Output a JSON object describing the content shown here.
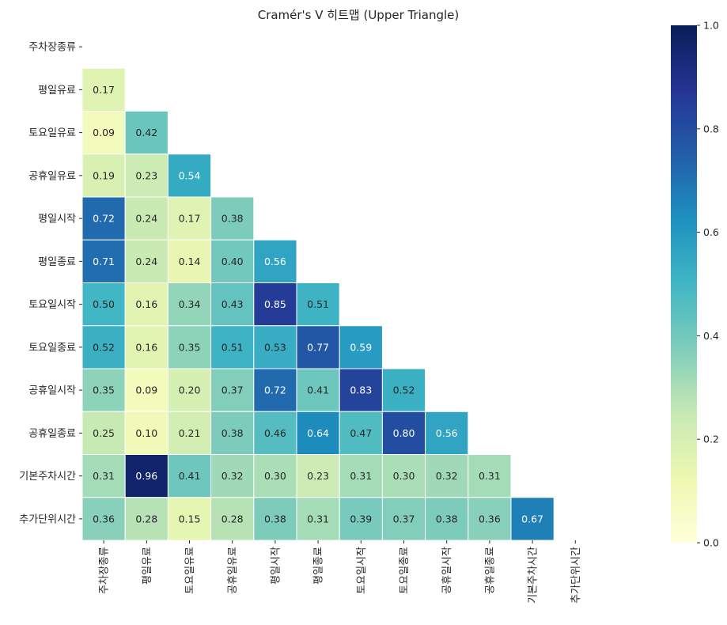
{
  "chart_data": {
    "type": "heatmap",
    "title": "Cramér's V 히트맵 (Upper Triangle)",
    "xlabel": "",
    "ylabel": "",
    "categories": [
      "주차장종류",
      "평일유료",
      "토요일유료",
      "공휴일유료",
      "평일시작",
      "평일종료",
      "토요일시작",
      "토요일종료",
      "공휴일시작",
      "공휴일종료",
      "기본주차시간",
      "추가단위시간"
    ],
    "matrix": [
      [
        null,
        null,
        null,
        null,
        null,
        null,
        null,
        null,
        null,
        null,
        null,
        null
      ],
      [
        0.17,
        null,
        null,
        null,
        null,
        null,
        null,
        null,
        null,
        null,
        null,
        null
      ],
      [
        0.09,
        0.42,
        null,
        null,
        null,
        null,
        null,
        null,
        null,
        null,
        null,
        null
      ],
      [
        0.19,
        0.23,
        0.54,
        null,
        null,
        null,
        null,
        null,
        null,
        null,
        null,
        null
      ],
      [
        0.72,
        0.24,
        0.17,
        0.38,
        null,
        null,
        null,
        null,
        null,
        null,
        null,
        null
      ],
      [
        0.71,
        0.24,
        0.14,
        0.4,
        0.56,
        null,
        null,
        null,
        null,
        null,
        null,
        null
      ],
      [
        0.5,
        0.16,
        0.34,
        0.43,
        0.85,
        0.51,
        null,
        null,
        null,
        null,
        null,
        null
      ],
      [
        0.52,
        0.16,
        0.35,
        0.51,
        0.53,
        0.77,
        0.59,
        null,
        null,
        null,
        null,
        null
      ],
      [
        0.35,
        0.09,
        0.2,
        0.37,
        0.72,
        0.41,
        0.83,
        0.52,
        null,
        null,
        null,
        null
      ],
      [
        0.25,
        0.1,
        0.21,
        0.38,
        0.46,
        0.64,
        0.47,
        0.8,
        0.56,
        null,
        null,
        null
      ],
      [
        0.31,
        0.96,
        0.41,
        0.32,
        0.3,
        0.23,
        0.31,
        0.3,
        0.32,
        0.31,
        null,
        null
      ],
      [
        0.36,
        0.28,
        0.15,
        0.28,
        0.38,
        0.31,
        0.39,
        0.37,
        0.38,
        0.36,
        0.67,
        null
      ]
    ],
    "vmin": 0.0,
    "vmax": 1.0,
    "colormap": "YlGnBu",
    "colorbar_ticks": [
      "0.0",
      "0.2",
      "0.4",
      "0.6",
      "0.8",
      "1.0"
    ],
    "value_format": "2 decimals",
    "grid": false,
    "legend_placement": "right colorbar"
  }
}
